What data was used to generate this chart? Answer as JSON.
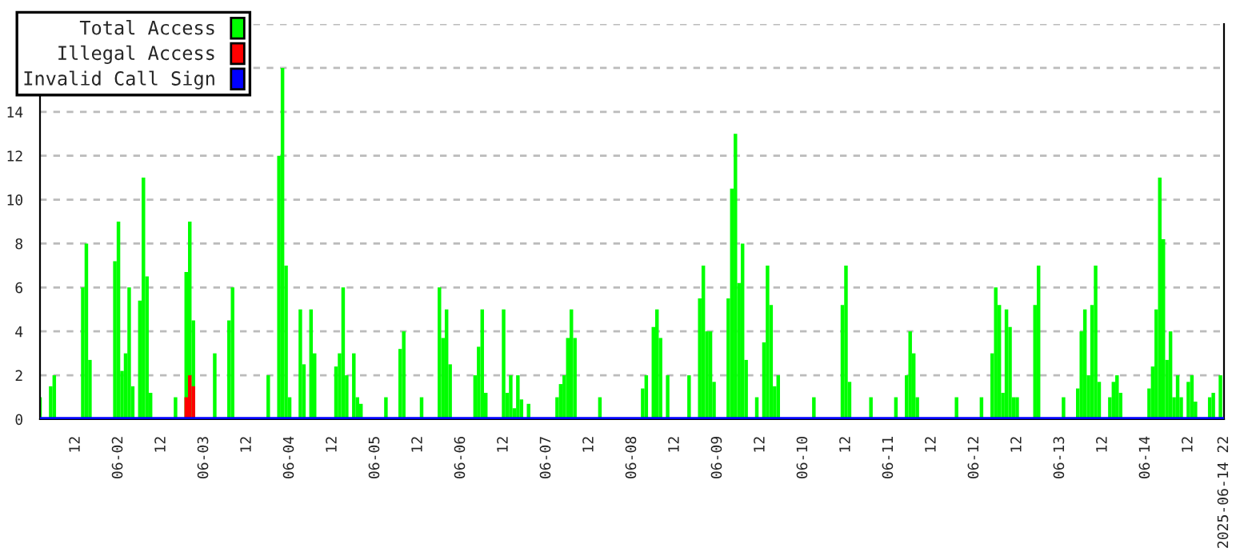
{
  "chart_data": {
    "type": "bar",
    "xlim": [
      "2025-06-01T02:00",
      "2025-06-14T22:00"
    ],
    "ylim": [
      0,
      18
    ],
    "yticks": [
      0,
      2,
      4,
      6,
      8,
      10,
      12,
      14,
      {
        "value": 16,
        "label": null
      },
      {
        "value": 18,
        "label": null
      }
    ],
    "xticks": [
      {
        "value": "2025-06-01T12:00",
        "label": "12"
      },
      {
        "value": "2025-06-02T00:00",
        "label": "06-02"
      },
      {
        "value": "2025-06-02T12:00",
        "label": "12"
      },
      {
        "value": "2025-06-03T00:00",
        "label": "06-03"
      },
      {
        "value": "2025-06-03T12:00",
        "label": "12"
      },
      {
        "value": "2025-06-04T00:00",
        "label": "06-04"
      },
      {
        "value": "2025-06-04T12:00",
        "label": "12"
      },
      {
        "value": "2025-06-05T00:00",
        "label": "06-05"
      },
      {
        "value": "2025-06-05T12:00",
        "label": "12"
      },
      {
        "value": "2025-06-06T00:00",
        "label": "06-06"
      },
      {
        "value": "2025-06-06T12:00",
        "label": "12"
      },
      {
        "value": "2025-06-07T00:00",
        "label": "06-07"
      },
      {
        "value": "2025-06-07T12:00",
        "label": "12"
      },
      {
        "value": "2025-06-08T00:00",
        "label": "06-08"
      },
      {
        "value": "2025-06-08T12:00",
        "label": "12"
      },
      {
        "value": "2025-06-09T00:00",
        "label": "06-09"
      },
      {
        "value": "2025-06-09T12:00",
        "label": "12"
      },
      {
        "value": "2025-06-10T00:00",
        "label": "06-10"
      },
      {
        "value": "2025-06-10T12:00",
        "label": "12"
      },
      {
        "value": "2025-06-11T00:00",
        "label": "06-11"
      },
      {
        "value": "2025-06-11T12:00",
        "label": "12"
      },
      {
        "value": "2025-06-12T00:00",
        "label": "06-12"
      },
      {
        "value": "2025-06-12T12:00",
        "label": "12"
      },
      {
        "value": "2025-06-13T00:00",
        "label": "06-13"
      },
      {
        "value": "2025-06-13T12:00",
        "label": "12"
      },
      {
        "value": "2025-06-14T00:00",
        "label": "06-14"
      },
      {
        "value": "2025-06-14T12:00",
        "label": "12"
      },
      {
        "value": "2025-06-14T22:00",
        "label": "2025-06-14 22"
      }
    ],
    "grid": "y",
    "legend": "top left",
    "series": [
      {
        "name": "Total Access",
        "color": "#00ff00",
        "x": [
          "2025-06-01T02:00",
          "2025-06-01T05:00",
          "2025-06-01T06:00",
          "2025-06-01T14:00",
          "2025-06-01T15:00",
          "2025-06-01T16:00",
          "2025-06-01T23:00",
          "2025-06-02T00:00",
          "2025-06-02T01:00",
          "2025-06-02T02:00",
          "2025-06-02T03:00",
          "2025-06-02T04:00",
          "2025-06-02T06:00",
          "2025-06-02T07:00",
          "2025-06-02T08:00",
          "2025-06-02T09:00",
          "2025-06-02T16:00",
          "2025-06-02T19:00",
          "2025-06-02T20:00",
          "2025-06-02T21:00",
          "2025-06-03T03:00",
          "2025-06-03T07:00",
          "2025-06-03T08:00",
          "2025-06-03T18:00",
          "2025-06-03T21:00",
          "2025-06-03T22:00",
          "2025-06-03T23:00",
          "2025-06-04T00:00",
          "2025-06-04T03:00",
          "2025-06-04T04:00",
          "2025-06-04T06:00",
          "2025-06-04T07:00",
          "2025-06-04T13:00",
          "2025-06-04T14:00",
          "2025-06-04T15:00",
          "2025-06-04T16:00",
          "2025-06-04T18:00",
          "2025-06-04T19:00",
          "2025-06-04T20:00",
          "2025-06-05T03:00",
          "2025-06-05T07:00",
          "2025-06-05T08:00",
          "2025-06-05T13:00",
          "2025-06-05T18:00",
          "2025-06-05T19:00",
          "2025-06-05T20:00",
          "2025-06-05T21:00",
          "2025-06-06T04:00",
          "2025-06-06T05:00",
          "2025-06-06T06:00",
          "2025-06-06T07:00",
          "2025-06-06T12:00",
          "2025-06-06T13:00",
          "2025-06-06T14:00",
          "2025-06-06T15:00",
          "2025-06-06T16:00",
          "2025-06-06T17:00",
          "2025-06-06T19:00",
          "2025-06-07T03:00",
          "2025-06-07T04:00",
          "2025-06-07T05:00",
          "2025-06-07T06:00",
          "2025-06-07T07:00",
          "2025-06-07T08:00",
          "2025-06-07T15:00",
          "2025-06-08T03:00",
          "2025-06-08T04:00",
          "2025-06-08T06:00",
          "2025-06-08T07:00",
          "2025-06-08T08:00",
          "2025-06-08T10:00",
          "2025-06-08T16:00",
          "2025-06-08T19:00",
          "2025-06-08T20:00",
          "2025-06-08T21:00",
          "2025-06-08T22:00",
          "2025-06-08T23:00",
          "2025-06-09T03:00",
          "2025-06-09T04:00",
          "2025-06-09T05:00",
          "2025-06-09T06:00",
          "2025-06-09T07:00",
          "2025-06-09T08:00",
          "2025-06-09T11:00",
          "2025-06-09T13:00",
          "2025-06-09T14:00",
          "2025-06-09T15:00",
          "2025-06-09T16:00",
          "2025-06-09T17:00",
          "2025-06-10T03:00",
          "2025-06-10T11:00",
          "2025-06-10T12:00",
          "2025-06-10T13:00",
          "2025-06-10T19:00",
          "2025-06-11T02:00",
          "2025-06-11T05:00",
          "2025-06-11T06:00",
          "2025-06-11T07:00",
          "2025-06-11T08:00",
          "2025-06-11T19:00",
          "2025-06-12T02:00",
          "2025-06-12T05:00",
          "2025-06-12T06:00",
          "2025-06-12T07:00",
          "2025-06-12T08:00",
          "2025-06-12T09:00",
          "2025-06-12T10:00",
          "2025-06-12T11:00",
          "2025-06-12T12:00",
          "2025-06-12T17:00",
          "2025-06-12T18:00",
          "2025-06-13T01:00",
          "2025-06-13T05:00",
          "2025-06-13T06:00",
          "2025-06-13T07:00",
          "2025-06-13T08:00",
          "2025-06-13T09:00",
          "2025-06-13T10:00",
          "2025-06-13T11:00",
          "2025-06-13T14:00",
          "2025-06-13T15:00",
          "2025-06-13T16:00",
          "2025-06-13T17:00",
          "2025-06-14T01:00",
          "2025-06-14T02:00",
          "2025-06-14T03:00",
          "2025-06-14T04:00",
          "2025-06-14T05:00",
          "2025-06-14T06:00",
          "2025-06-14T07:00",
          "2025-06-14T08:00",
          "2025-06-14T09:00",
          "2025-06-14T10:00",
          "2025-06-14T12:00",
          "2025-06-14T13:00",
          "2025-06-14T14:00",
          "2025-06-14T18:00",
          "2025-06-14T19:00",
          "2025-06-14T21:00"
        ],
        "values": [
          1,
          1.5,
          2,
          6,
          8,
          2.7,
          7.2,
          9,
          2.2,
          3,
          6,
          1.5,
          5.4,
          11,
          6.5,
          1.2,
          1,
          6.7,
          9,
          4.5,
          3,
          4.5,
          6,
          2,
          12,
          16,
          7,
          1,
          5,
          2.5,
          5,
          3,
          2.4,
          3,
          6,
          2,
          3,
          1,
          0.7,
          1,
          3.2,
          4,
          1,
          6,
          3.7,
          5,
          2.5,
          2,
          3.3,
          5,
          1.2,
          5,
          1.2,
          2,
          0.5,
          2,
          0.9,
          0.7,
          1,
          1.6,
          2,
          3.7,
          5,
          3.7,
          1,
          1.4,
          2,
          4.2,
          5,
          3.7,
          2,
          2,
          5.5,
          7,
          4,
          4,
          1.7,
          5.5,
          10.5,
          13,
          6.2,
          8,
          2.7,
          1,
          3.5,
          7,
          5.2,
          1.5,
          2,
          1,
          5.2,
          7,
          1.7,
          1,
          1,
          2,
          4,
          3,
          1,
          1,
          1,
          3,
          6,
          5.2,
          1.2,
          5,
          4.2,
          1,
          1,
          5.2,
          7,
          1,
          1.4,
          4,
          5,
          2,
          5.2,
          7,
          1.7,
          1,
          1.7,
          2,
          1.2,
          1.4,
          2.4,
          5,
          11,
          8.2,
          2.7,
          4,
          1,
          2,
          1,
          1.7,
          2,
          0.8,
          1,
          1.2,
          2
        ]
      },
      {
        "name": "Illegal Access",
        "color": "#ff0000",
        "x": [
          "2025-06-02T19:00",
          "2025-06-02T20:00",
          "2025-06-02T21:00"
        ],
        "values": [
          1,
          2,
          1.5
        ]
      },
      {
        "name": "Invalid Call Sign",
        "type": "line",
        "color": "#0000ff",
        "x": [
          "2025-06-01T02:00",
          "2025-06-14T22:00"
        ],
        "values": [
          0,
          0
        ]
      }
    ]
  }
}
